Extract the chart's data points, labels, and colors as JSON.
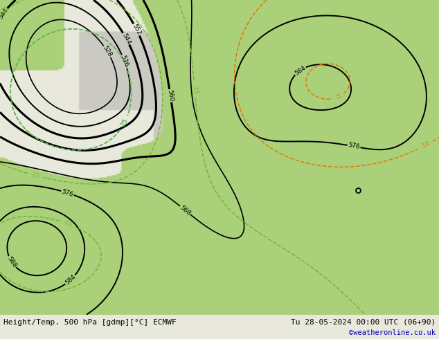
{
  "bottom_left_label": "Height/Temp. 500 hPa [gdmp][°C] ECMWF",
  "bottom_right_label": "Tu 28-05-2024 00:00 UTC (06+90)",
  "watermark": "©weatheronline.co.uk",
  "figsize": [
    6.34,
    4.9
  ],
  "dpi": 100,
  "bg_color": "#dcdcd0",
  "green_color": "#aacf7a",
  "label_bg": "#e8e8dc",
  "z500_color": "#000000",
  "temp_orange": "#e07800",
  "temp_green_dashed": "#78b432",
  "temp_cyan": "#00b4b4",
  "temp_red": "#e00000",
  "watermark_color": "#0000bb"
}
